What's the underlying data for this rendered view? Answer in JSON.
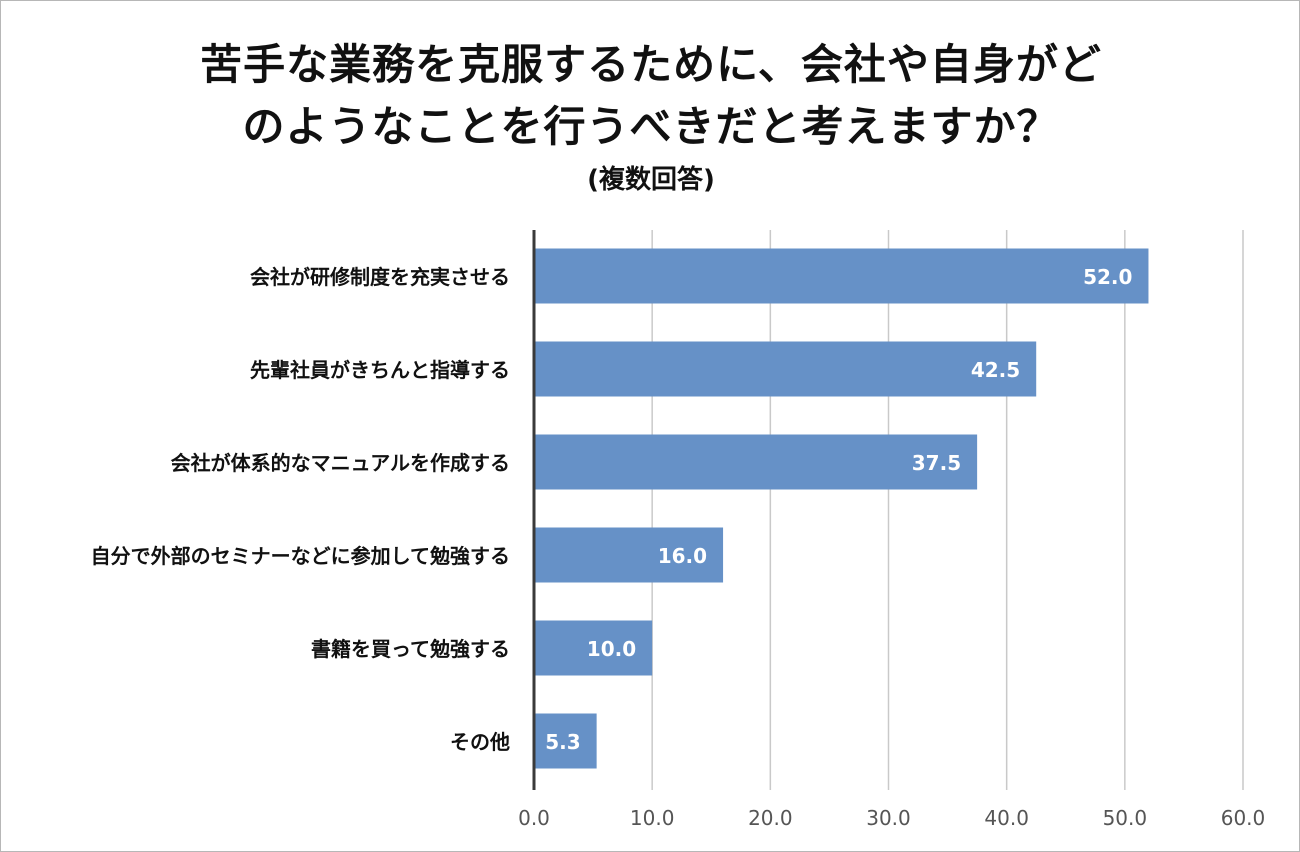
{
  "title_line1": "苦手な業務を克服するために、会社や自身がど",
  "title_line2": "のようなことを行うべきだと考えますか？",
  "subtitle": "(複数回答)",
  "chart_data": {
    "type": "bar",
    "orientation": "horizontal",
    "title": "苦手な業務を克服するために、会社や自身がどのようなことを行うべきだと考えますか？",
    "subtitle": "(複数回答)",
    "categories": [
      "会社が研修制度を充実させる",
      "先輩社員がきちんと指導する",
      "会社が体系的なマニュアルを作成する",
      "自分で外部のセミナーなどに参加して勉強する",
      "書籍を買って勉強する",
      "その他"
    ],
    "values": [
      52.0,
      42.5,
      37.5,
      16.0,
      10.0,
      5.3
    ],
    "value_labels": [
      "52.0",
      "42.5",
      "37.5",
      "16.0",
      "10.0",
      "5.3"
    ],
    "xlim": [
      0,
      60
    ],
    "ticks": [
      "0.0",
      "10.0",
      "20.0",
      "30.0",
      "40.0",
      "50.0",
      "60.0"
    ],
    "grid": true,
    "bar_color": "#6691c7",
    "label_color": "#ffffff",
    "xlabel": "",
    "ylabel": ""
  }
}
